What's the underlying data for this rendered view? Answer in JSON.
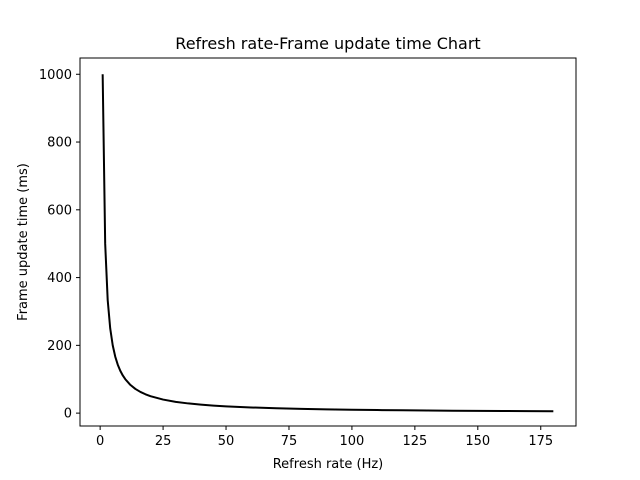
{
  "chart_data": {
    "type": "line",
    "title": "Refresh rate-Frame update time Chart",
    "xlabel": "Refresh rate (Hz)",
    "ylabel": "Frame update time (ms)",
    "xlim": [
      -8,
      189
    ],
    "ylim": [
      -38,
      1048
    ],
    "x_ticks": [
      0,
      25,
      50,
      75,
      100,
      125,
      150,
      175
    ],
    "y_ticks": [
      0,
      200,
      400,
      600,
      800,
      1000
    ],
    "grid": false,
    "series": [
      {
        "color": "#000000",
        "x": [
          1,
          2,
          3,
          4,
          5,
          6,
          7,
          8,
          9,
          10,
          12,
          14,
          16,
          18,
          20,
          25,
          30,
          35,
          40,
          45,
          50,
          60,
          70,
          80,
          90,
          100,
          110,
          120,
          130,
          140,
          150,
          160,
          170,
          180
        ],
        "y": [
          1000,
          500,
          333.3,
          250,
          200,
          166.7,
          142.9,
          125,
          111.1,
          100,
          83.3,
          71.4,
          62.5,
          55.6,
          50,
          40,
          33.3,
          28.6,
          25,
          22.2,
          20,
          16.7,
          14.3,
          12.5,
          11.1,
          10,
          9.1,
          8.3,
          7.7,
          7.1,
          6.7,
          6.3,
          5.9,
          5.6
        ]
      }
    ]
  }
}
